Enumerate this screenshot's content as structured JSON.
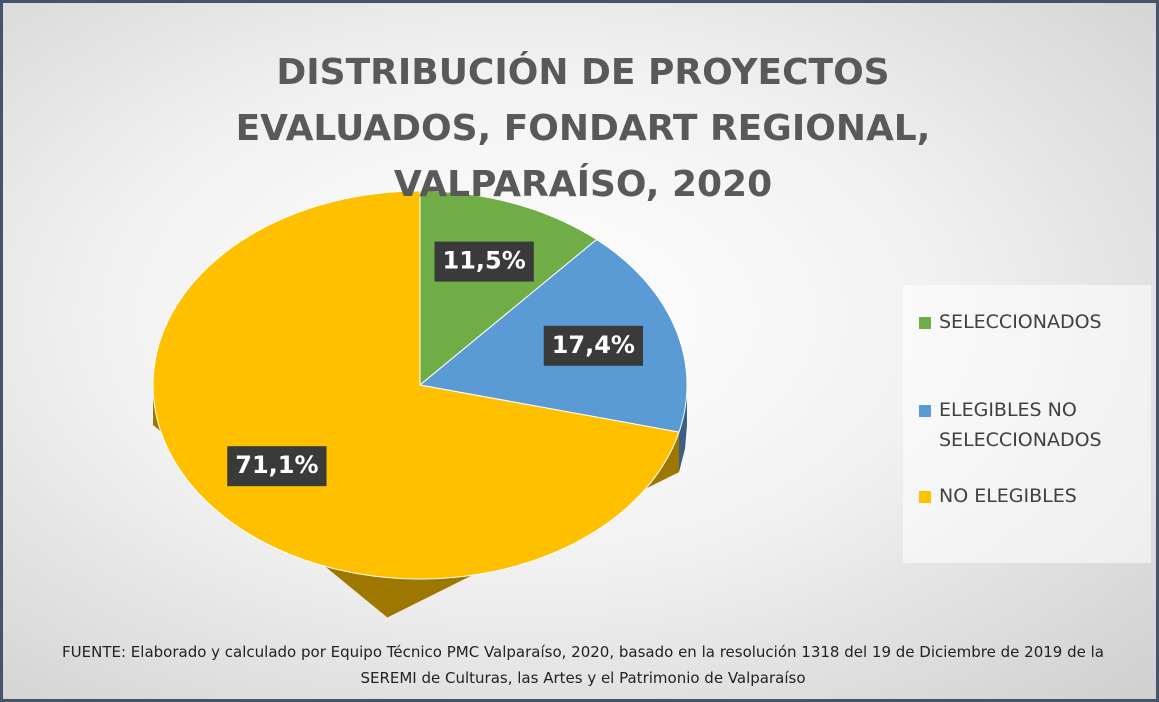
{
  "chart_data": {
    "type": "pie3d",
    "title": "DISTRIBUCIÓN DE PROYECTOS EVALUADOS, FONDART REGIONAL, VALPARAÍSO, 2020",
    "categories": [
      "SELECCIONADOS",
      "ELEGIBLES NO SELECCIONADOS",
      "NO ELEGIBLES"
    ],
    "values": [
      11.5,
      17.4,
      71.1
    ],
    "value_labels": [
      "11,5%",
      "17,4%",
      "71,1%"
    ],
    "colors": [
      "#70ad47",
      "#5b9bd5",
      "#ffc000"
    ],
    "legend": "right",
    "source": "FUENTE: Elaborado y calculado por Equipo Técnico PMC Valparaíso, 2020, basado en la resolución 1318 del 19 de Diciembre de 2019 de la SEREMI de Culturas, las Artes y el Patrimonio de Valparaíso"
  }
}
